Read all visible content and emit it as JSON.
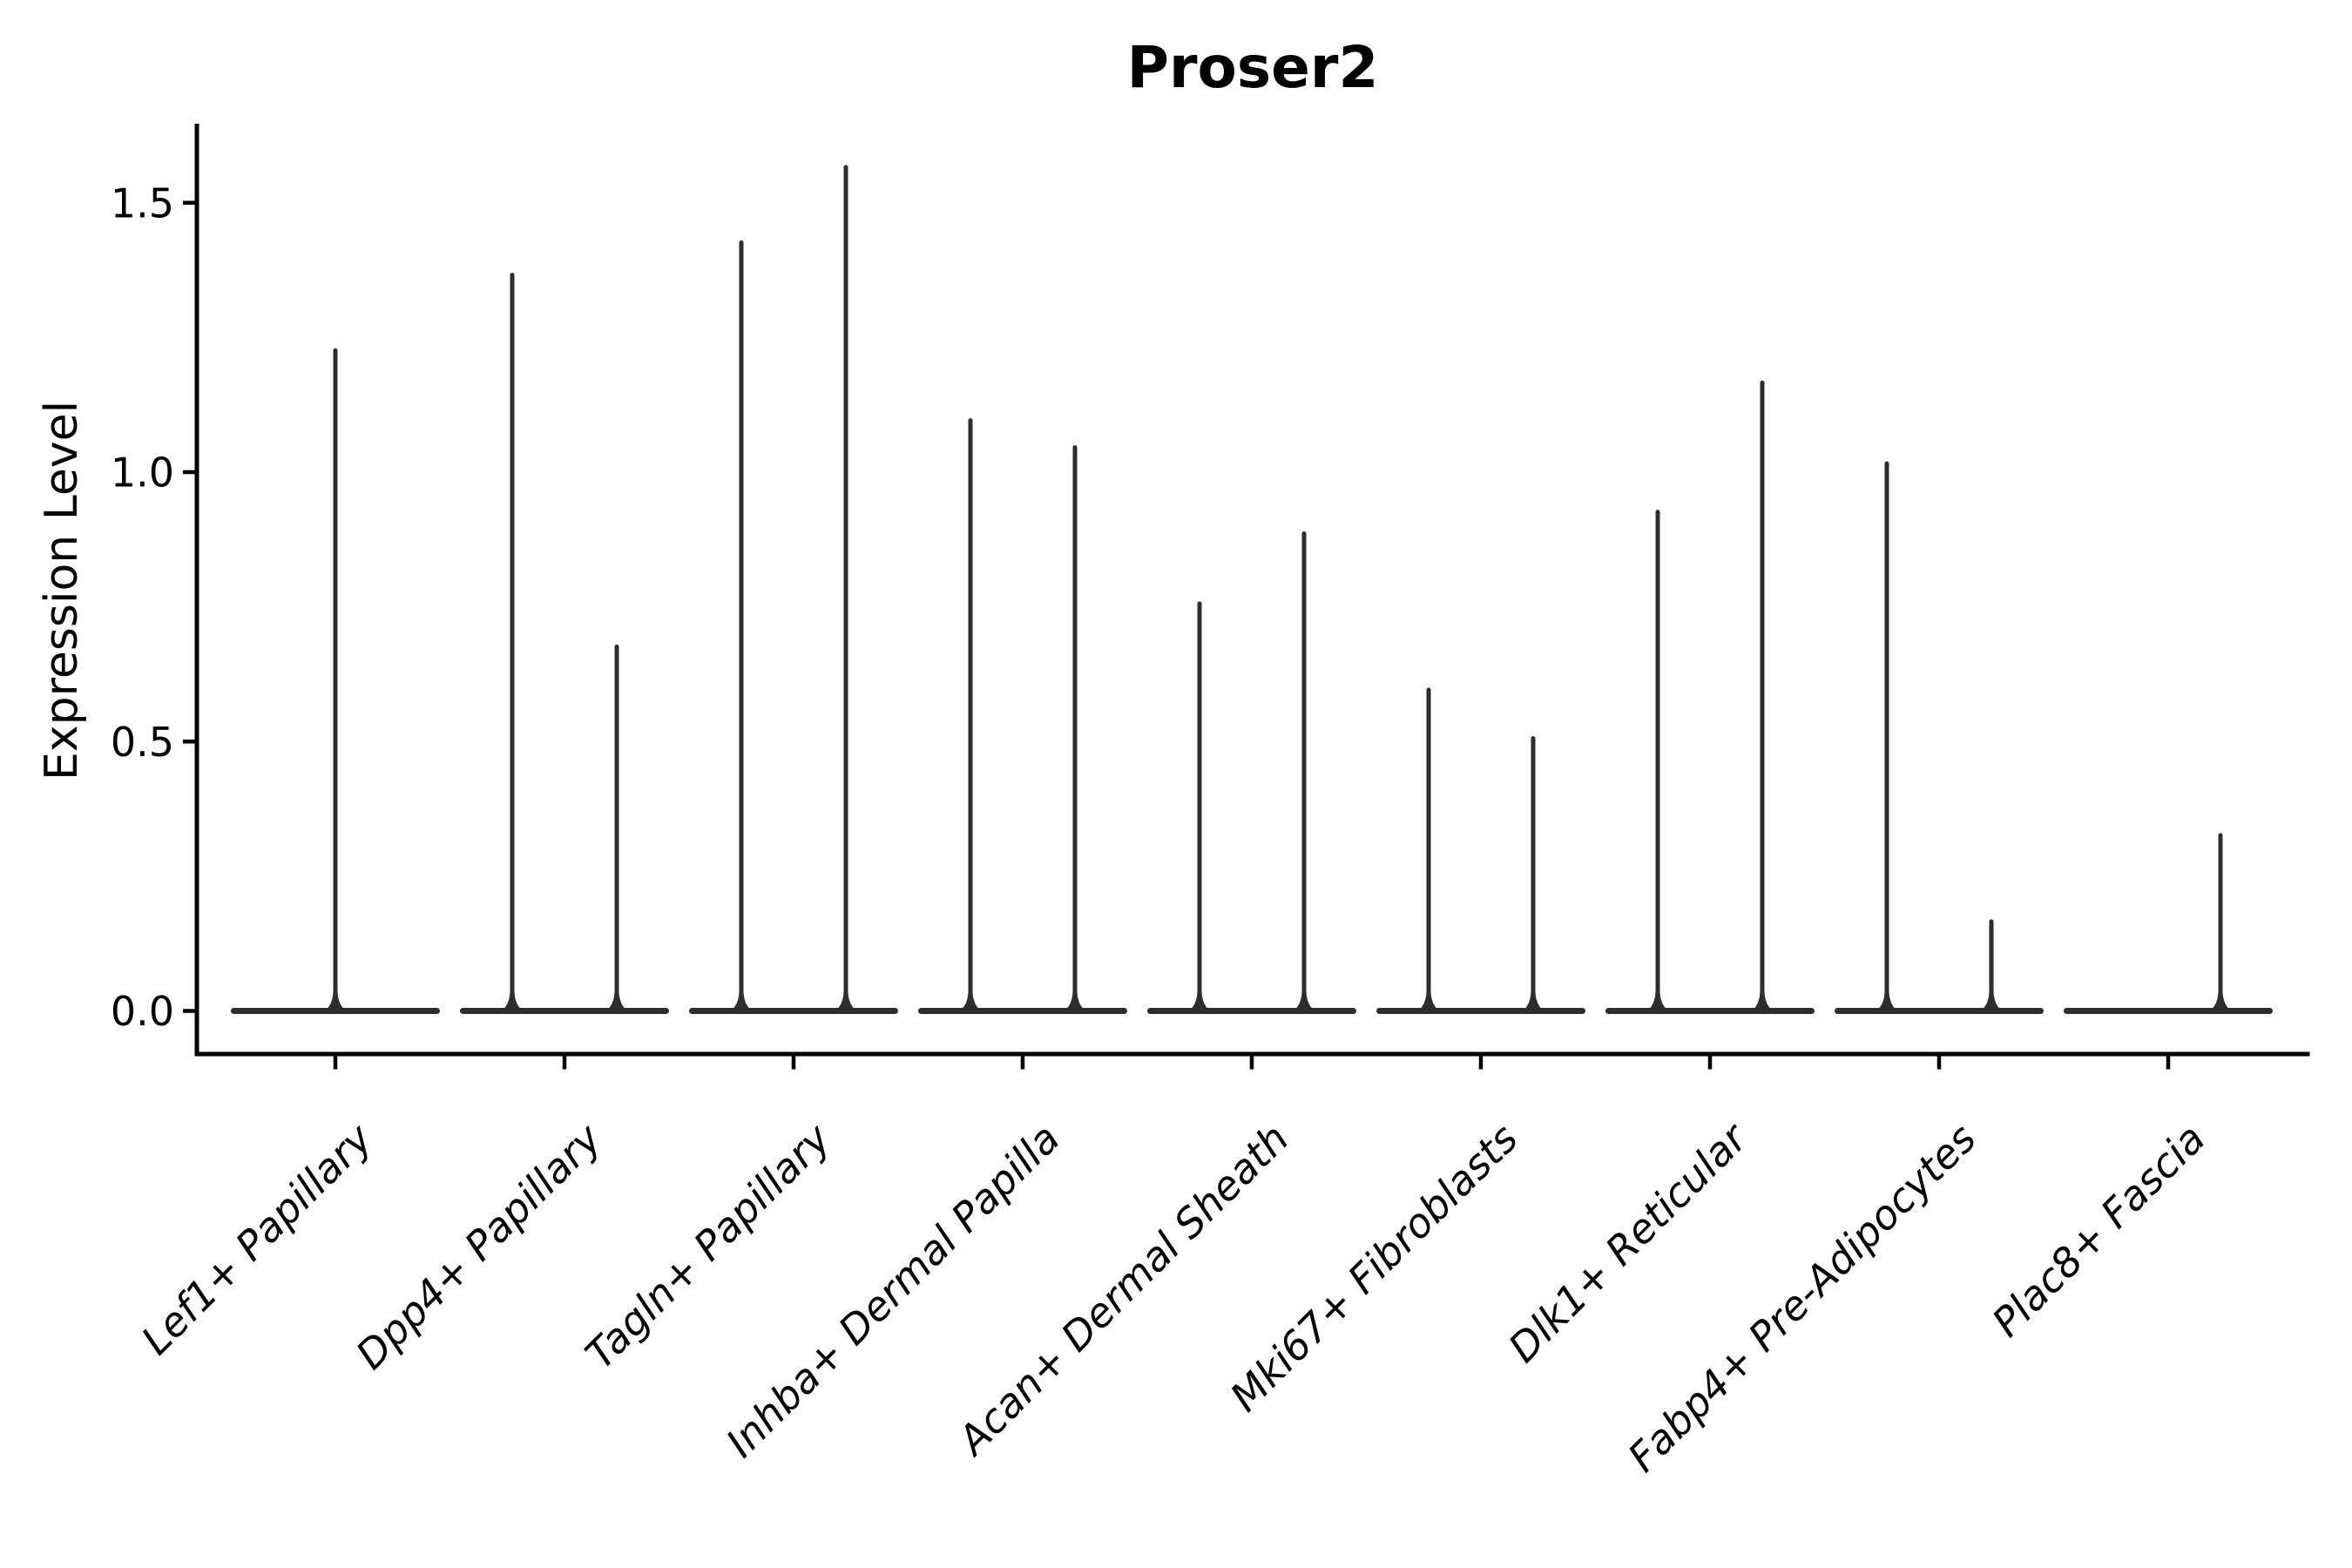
{
  "figure": {
    "background": "#ffffff",
    "text_color": "#000000"
  },
  "chart_data": {
    "type": "violin",
    "title": "Proser2",
    "xlabel": "",
    "ylabel": "Expression Level",
    "y_tick_labels": [
      "0.0",
      "0.5",
      "1.0",
      "1.5"
    ],
    "y_tick_values": [
      0.0,
      0.5,
      1.0,
      1.5
    ],
    "ylim": [
      -0.07,
      1.65
    ],
    "grid": false,
    "legend_position": "none",
    "violin_color": "#2d2d2d",
    "axis_color": "#000000",
    "categories": [
      "Lef1+ Papillary",
      "Dpp4+ Papillary",
      "Tagln+ Papillary",
      "Inhba+ Dermal Papilla",
      "Acan+ Dermal Sheath",
      "Mki67+ Fibroblasts",
      "Dlk1+ Reticular",
      "Fabp4+ Pre-Adipocytes",
      "Plac8+ Fascia"
    ],
    "series": [
      {
        "category": "Lef1+ Papillary",
        "violin_max_values": [
          1.23
        ]
      },
      {
        "category": "Dpp4+ Papillary",
        "violin_max_values": [
          1.37,
          0.68
        ]
      },
      {
        "category": "Tagln+ Papillary",
        "violin_max_values": [
          1.43,
          1.57
        ]
      },
      {
        "category": "Inhba+ Dermal Papilla",
        "violin_max_values": [
          1.1,
          1.05
        ]
      },
      {
        "category": "Acan+ Dermal Sheath",
        "violin_max_values": [
          0.76,
          0.89
        ]
      },
      {
        "category": "Mki67+ Fibroblasts",
        "violin_max_values": [
          0.6,
          0.51
        ]
      },
      {
        "category": "Dlk1+ Reticular",
        "violin_max_values": [
          0.93,
          1.17
        ]
      },
      {
        "category": "Fabp4+ Pre-Adipocytes",
        "violin_max_values": [
          1.02,
          0.17
        ]
      },
      {
        "category": "Plac8+ Fascia",
        "violin_max_values": [
          0,
          0.33
        ]
      }
    ],
    "note": "Each value is the top of a needle-thin violin rising from a flat base at expression level 0; a value of 0 means a flat violin with no spike."
  }
}
